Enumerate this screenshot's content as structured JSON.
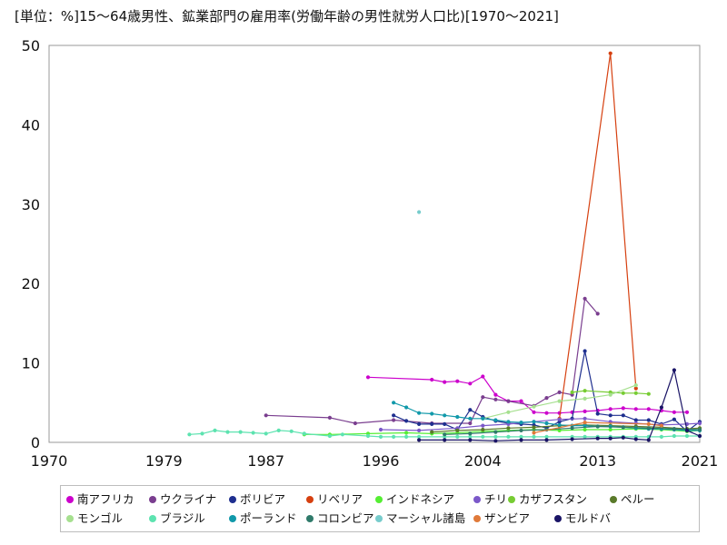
{
  "chart_data": {
    "type": "line",
    "title": "[単位：%]15～64歳男性、鉱業部門の雇用率(労働年齢の男性就労人口比)[1970～2021]",
    "xlabel": "",
    "ylabel": "",
    "xlim": [
      1970,
      2021
    ],
    "ylim": [
      0,
      50
    ],
    "x_ticks": [
      "1970",
      "1979",
      "1987",
      "1996",
      "2004",
      "2013",
      "2021"
    ],
    "y_ticks": [
      "0",
      "10",
      "20",
      "30",
      "40",
      "50"
    ],
    "grid": true,
    "legend_position": "bottom",
    "series": [
      {
        "name": "南アフリカ",
        "color": "#cc00cc",
        "points": [
          [
            1995,
            8.2
          ],
          [
            2000,
            7.9
          ],
          [
            2001,
            7.6
          ],
          [
            2002,
            7.7
          ],
          [
            2003,
            7.4
          ],
          [
            2004,
            8.3
          ],
          [
            2005,
            6.0
          ],
          [
            2006,
            5.2
          ],
          [
            2007,
            5.2
          ],
          [
            2008,
            3.8
          ],
          [
            2009,
            3.7
          ],
          [
            2010,
            3.7
          ],
          [
            2011,
            3.8
          ],
          [
            2012,
            3.9
          ],
          [
            2013,
            4.0
          ],
          [
            2014,
            4.2
          ],
          [
            2015,
            4.3
          ],
          [
            2016,
            4.2
          ],
          [
            2017,
            4.2
          ],
          [
            2018,
            4.0
          ],
          [
            2019,
            3.8
          ],
          [
            2020,
            3.8
          ]
        ]
      },
      {
        "name": "ウクライナ",
        "color": "#7a3e8f",
        "points": [
          [
            1987,
            3.4
          ],
          [
            1992,
            3.1
          ],
          [
            1994,
            2.4
          ],
          [
            1997,
            2.8
          ],
          [
            2000,
            2.4
          ],
          [
            2003,
            2.4
          ],
          [
            2004,
            5.7
          ],
          [
            2005,
            5.4
          ],
          [
            2006,
            5.2
          ],
          [
            2008,
            4.6
          ],
          [
            2009,
            5.6
          ],
          [
            2010,
            6.3
          ],
          [
            2011,
            6.0
          ],
          [
            2012,
            18.1
          ],
          [
            2013,
            16.2
          ]
        ]
      },
      {
        "name": "ボリビア",
        "color": "#1e2f8f",
        "points": [
          [
            1997,
            3.4
          ],
          [
            1998,
            2.7
          ],
          [
            1999,
            2.3
          ],
          [
            2000,
            2.3
          ],
          [
            2001,
            2.3
          ],
          [
            2002,
            1.6
          ],
          [
            2003,
            4.1
          ],
          [
            2004,
            3.2
          ],
          [
            2005,
            2.7
          ],
          [
            2006,
            2.4
          ],
          [
            2007,
            2.3
          ],
          [
            2008,
            2.2
          ],
          [
            2009,
            1.8
          ],
          [
            2010,
            2.6
          ],
          [
            2011,
            3.0
          ],
          [
            2012,
            11.5
          ],
          [
            2013,
            3.6
          ],
          [
            2014,
            3.4
          ],
          [
            2015,
            3.4
          ],
          [
            2016,
            2.8
          ],
          [
            2017,
            2.8
          ],
          [
            2018,
            2.3
          ],
          [
            2019,
            2.9
          ],
          [
            2020,
            1.4
          ],
          [
            2021,
            2.6
          ]
        ]
      },
      {
        "name": "リベリア",
        "color": "#d64010",
        "points": [
          [
            2010,
            3.0
          ],
          [
            2014,
            49.0
          ],
          [
            2016,
            6.8
          ]
        ]
      },
      {
        "name": "インドネシア",
        "color": "#55ee33",
        "points": [
          [
            1990,
            1.0
          ],
          [
            1992,
            1.0
          ],
          [
            1995,
            1.1
          ],
          [
            1998,
            1.2
          ],
          [
            2000,
            1.1
          ],
          [
            2002,
            1.2
          ],
          [
            2004,
            1.4
          ],
          [
            2006,
            1.5
          ],
          [
            2008,
            1.6
          ],
          [
            2010,
            1.5
          ],
          [
            2012,
            1.6
          ],
          [
            2014,
            1.6
          ],
          [
            2016,
            1.7
          ],
          [
            2018,
            1.6
          ],
          [
            2020,
            1.4
          ],
          [
            2021,
            1.5
          ]
        ]
      },
      {
        "name": "チリ",
        "color": "#7b58c9",
        "points": [
          [
            1996,
            1.6
          ],
          [
            1999,
            1.5
          ],
          [
            2002,
            1.8
          ],
          [
            2004,
            2.1
          ],
          [
            2006,
            2.3
          ],
          [
            2008,
            2.6
          ],
          [
            2010,
            2.9
          ],
          [
            2012,
            3.0
          ],
          [
            2014,
            2.6
          ],
          [
            2016,
            2.4
          ],
          [
            2018,
            2.2
          ],
          [
            2020,
            2.3
          ],
          [
            2021,
            2.4
          ]
        ]
      },
      {
        "name": "カザフスタン",
        "color": "#77cc33",
        "points": [
          [
            2011,
            6.3
          ],
          [
            2012,
            6.5
          ],
          [
            2014,
            6.3
          ],
          [
            2015,
            6.2
          ],
          [
            2016,
            6.2
          ],
          [
            2017,
            6.1
          ]
        ]
      },
      {
        "name": "ペルー",
        "color": "#5a7a2a",
        "points": [
          [
            2000,
            1.3
          ],
          [
            2002,
            1.5
          ],
          [
            2004,
            1.6
          ],
          [
            2006,
            1.8
          ],
          [
            2008,
            1.9
          ],
          [
            2010,
            2.1
          ],
          [
            2012,
            2.2
          ],
          [
            2014,
            2.1
          ],
          [
            2016,
            2.0
          ],
          [
            2018,
            1.9
          ],
          [
            2020,
            1.7
          ],
          [
            2021,
            1.8
          ]
        ]
      },
      {
        "name": "モンゴル",
        "color": "#a6e08f",
        "points": [
          [
            2004,
            3.0
          ],
          [
            2006,
            3.8
          ],
          [
            2008,
            4.5
          ],
          [
            2010,
            5.2
          ],
          [
            2012,
            5.5
          ],
          [
            2014,
            6.0
          ],
          [
            2016,
            7.2
          ]
        ]
      },
      {
        "name": "ブラジル",
        "color": "#5de3b0",
        "points": [
          [
            1981,
            1.0
          ],
          [
            1982,
            1.1
          ],
          [
            1983,
            1.5
          ],
          [
            1984,
            1.3
          ],
          [
            1985,
            1.3
          ],
          [
            1986,
            1.2
          ],
          [
            1987,
            1.1
          ],
          [
            1988,
            1.5
          ],
          [
            1989,
            1.4
          ],
          [
            1990,
            1.1
          ],
          [
            1992,
            0.8
          ],
          [
            1993,
            1.0
          ],
          [
            1995,
            0.8
          ],
          [
            1996,
            0.7
          ],
          [
            1997,
            0.7
          ],
          [
            1998,
            0.7
          ],
          [
            1999,
            0.7
          ],
          [
            2001,
            0.7
          ],
          [
            2002,
            0.7
          ],
          [
            2003,
            0.7
          ],
          [
            2004,
            0.7
          ],
          [
            2005,
            0.7
          ],
          [
            2006,
            0.7
          ],
          [
            2007,
            0.7
          ],
          [
            2008,
            0.7
          ],
          [
            2009,
            0.7
          ],
          [
            2011,
            0.7
          ],
          [
            2012,
            0.7
          ],
          [
            2013,
            0.7
          ],
          [
            2014,
            0.7
          ],
          [
            2015,
            0.7
          ],
          [
            2016,
            0.7
          ],
          [
            2017,
            0.7
          ],
          [
            2018,
            0.7
          ],
          [
            2019,
            0.8
          ],
          [
            2020,
            0.8
          ],
          [
            2021,
            0.8
          ]
        ]
      },
      {
        "name": "ポーランド",
        "color": "#1199aa",
        "points": [
          [
            1997,
            5.0
          ],
          [
            1998,
            4.4
          ],
          [
            1999,
            3.7
          ],
          [
            2000,
            3.6
          ],
          [
            2001,
            3.4
          ],
          [
            2002,
            3.2
          ],
          [
            2003,
            3.0
          ],
          [
            2004,
            3.0
          ],
          [
            2005,
            2.8
          ],
          [
            2006,
            2.6
          ],
          [
            2007,
            2.5
          ],
          [
            2008,
            2.6
          ],
          [
            2009,
            2.4
          ],
          [
            2010,
            2.2
          ],
          [
            2011,
            2.1
          ],
          [
            2012,
            2.1
          ],
          [
            2013,
            2.0
          ],
          [
            2014,
            2.0
          ],
          [
            2015,
            1.9
          ],
          [
            2016,
            1.8
          ],
          [
            2017,
            1.7
          ],
          [
            2018,
            1.7
          ],
          [
            2019,
            1.6
          ],
          [
            2020,
            1.5
          ],
          [
            2021,
            1.5
          ]
        ]
      },
      {
        "name": "コロンビア",
        "color": "#2f7a6a",
        "points": [
          [
            2001,
            1.0
          ],
          [
            2003,
            1.1
          ],
          [
            2005,
            1.3
          ],
          [
            2007,
            1.5
          ],
          [
            2009,
            1.6
          ],
          [
            2011,
            1.8
          ],
          [
            2013,
            2.0
          ],
          [
            2015,
            1.9
          ],
          [
            2017,
            1.8
          ],
          [
            2019,
            1.7
          ],
          [
            2021,
            1.6
          ]
        ]
      },
      {
        "name": "マーシャル諸島",
        "color": "#77cccc",
        "points": [
          [
            1999,
            29.0
          ]
        ]
      },
      {
        "name": "ザンビア",
        "color": "#e07a3a",
        "points": [
          [
            2008,
            1.2
          ],
          [
            2012,
            2.5
          ],
          [
            2017,
            2.3
          ],
          [
            2018,
            2.1
          ]
        ]
      },
      {
        "name": "モルドバ",
        "color": "#1a1466",
        "points": [
          [
            1999,
            0.3
          ],
          [
            2001,
            0.3
          ],
          [
            2003,
            0.3
          ],
          [
            2005,
            0.2
          ],
          [
            2007,
            0.3
          ],
          [
            2009,
            0.3
          ],
          [
            2011,
            0.4
          ],
          [
            2013,
            0.5
          ],
          [
            2014,
            0.5
          ],
          [
            2015,
            0.6
          ],
          [
            2016,
            0.4
          ],
          [
            2017,
            0.3
          ],
          [
            2018,
            4.4
          ],
          [
            2019,
            9.1
          ],
          [
            2020,
            1.5
          ],
          [
            2021,
            0.8
          ]
        ]
      }
    ]
  }
}
